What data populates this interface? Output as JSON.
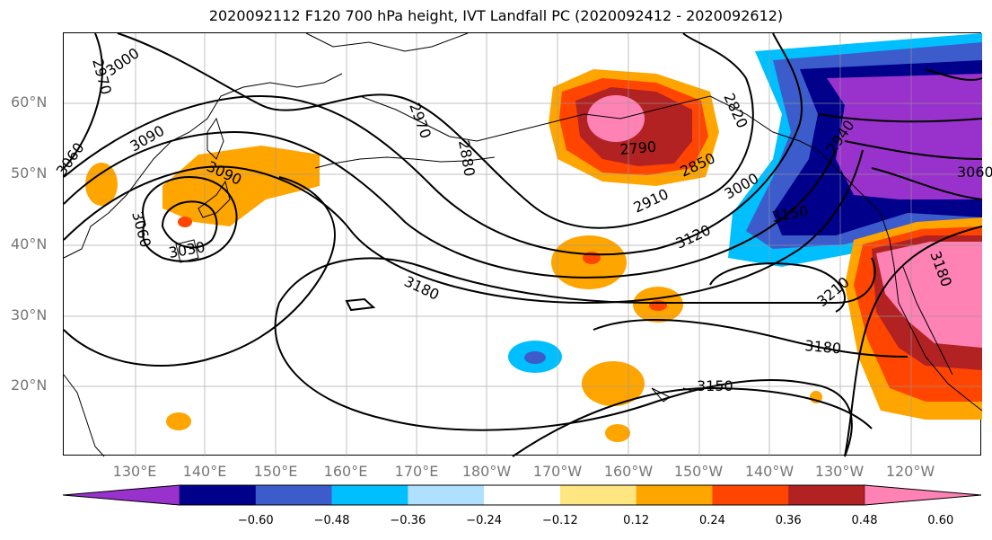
{
  "title": "2020092112 F120 700 hPa height, IVT Landfall PC (2020092412 - 2020092612)",
  "lat_labels": [
    "60°N",
    "50°N",
    "40°N",
    "30°N",
    "20°N"
  ],
  "lon_labels": [
    "130°E",
    "140°E",
    "150°E",
    "160°E",
    "170°E",
    "180°W",
    "170°W",
    "160°W",
    "150°W",
    "140°W",
    "130°W",
    "120°W"
  ],
  "contour_labels": [
    "2970",
    "3000",
    "3090",
    "3060",
    "3090",
    "3060",
    "3030",
    "2970",
    "2880",
    "2820",
    "2790",
    "2850",
    "2910",
    "3000",
    "2940",
    "3150",
    "3120",
    "3180",
    "3210",
    "3180",
    "3150",
    "3180",
    "3060"
  ],
  "colorbar": {
    "tick_labels": [
      "−0.60",
      "−0.48",
      "−0.36",
      "−0.24",
      "−0.12",
      "0.12",
      "0.24",
      "0.36",
      "0.48",
      "0.60"
    ],
    "colors": [
      "#9932cc",
      "#00008b",
      "#3c5ccc",
      "#00bfff",
      "#b0e0ff",
      "#ffffff",
      "#ffe680",
      "#ffa500",
      "#ff4500",
      "#b22222",
      "#ff82b4"
    ]
  }
}
